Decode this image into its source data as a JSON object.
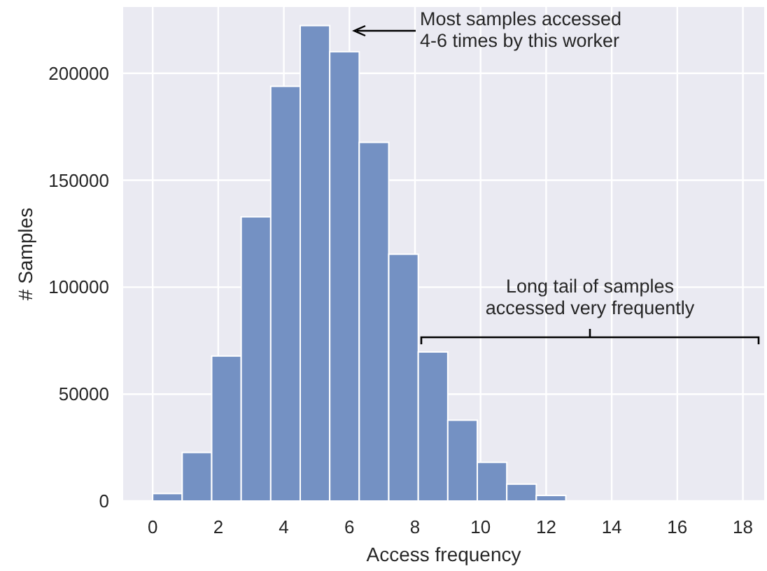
{
  "chart_data": {
    "type": "histogram",
    "xlabel": "Access frequency",
    "ylabel": "# Samples",
    "bins": [
      0,
      0.9,
      1.8,
      2.7,
      3.6,
      4.5,
      5.4,
      6.3,
      7.2,
      8.1,
      9,
      9.9,
      10.8,
      11.7,
      12.6,
      13.5,
      14.4,
      15.3,
      16.2,
      17.1,
      18
    ],
    "values": [
      3500,
      22700,
      67800,
      132900,
      193900,
      222300,
      210100,
      167700,
      115400,
      69700,
      37800,
      18100,
      7900,
      2600,
      null,
      null,
      0,
      0,
      0,
      0
    ],
    "color": "#7491c3",
    "xlim": [
      -0.9,
      18.65
    ],
    "xticks": [
      0,
      2,
      4,
      6,
      8,
      10,
      12,
      14,
      16,
      18
    ],
    "ylim": [
      0,
      231000
    ],
    "yticks": [
      0,
      50000,
      100000,
      150000,
      200000
    ],
    "grid": true,
    "annotations": [
      "Most samples accessed\n4-6 times by this worker",
      "Long tail of samples\naccessed very frequently"
    ]
  }
}
